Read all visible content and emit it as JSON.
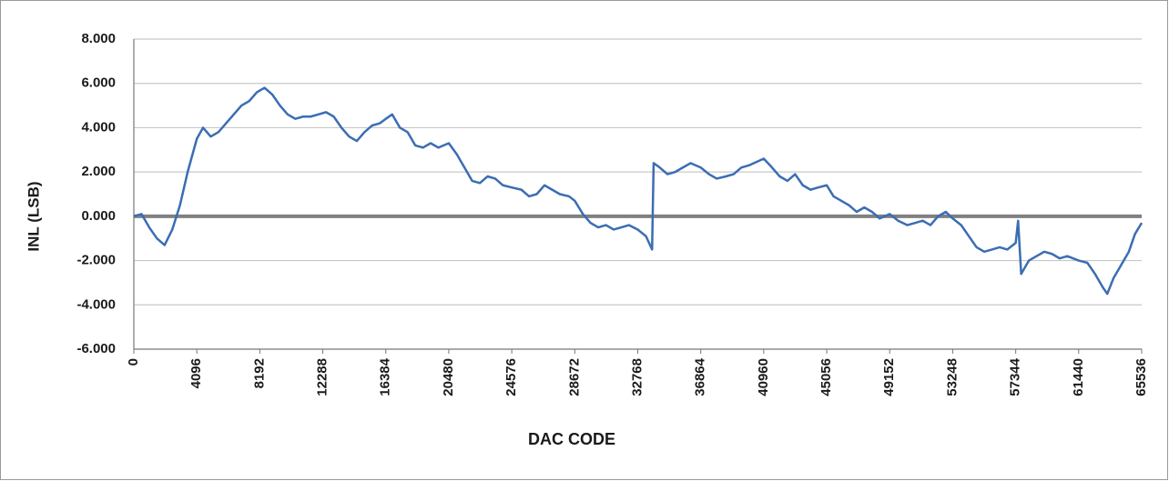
{
  "chart_data": {
    "type": "line",
    "x_label": "DAC CODE",
    "y_label": "INL (LSB)",
    "color": "#3b6db3",
    "grid": true,
    "xlim": [
      0,
      65536
    ],
    "ylim": [
      -6,
      8
    ],
    "xticks": [
      0,
      4096,
      8192,
      12288,
      16384,
      20480,
      24576,
      28672,
      32768,
      36864,
      40960,
      45056,
      49152,
      53248,
      57344,
      61440,
      65536
    ],
    "yticks": [
      {
        "value": -6,
        "label": "-6.000"
      },
      {
        "value": -4,
        "label": "-4.000"
      },
      {
        "value": -2,
        "label": "-2.000"
      },
      {
        "value": 0,
        "label": "0.000"
      },
      {
        "value": 2,
        "label": "2.000"
      },
      {
        "value": 4,
        "label": "4.000"
      },
      {
        "value": 6,
        "label": "6.000"
      },
      {
        "value": 8,
        "label": "8.000"
      }
    ],
    "x": [
      0,
      500,
      1000,
      1500,
      2000,
      2500,
      3000,
      3500,
      4096,
      4500,
      5000,
      5500,
      6000,
      6500,
      7000,
      7500,
      8000,
      8500,
      9000,
      9500,
      10000,
      10500,
      11000,
      11500,
      12000,
      12500,
      13000,
      13500,
      14000,
      14500,
      15000,
      15500,
      16000,
      16384,
      16800,
      17300,
      17800,
      18300,
      18800,
      19300,
      19800,
      20480,
      21000,
      21500,
      22000,
      22500,
      23000,
      23500,
      24000,
      24576,
      25200,
      25700,
      26200,
      26700,
      27200,
      27700,
      28300,
      28672,
      29200,
      29700,
      30200,
      30700,
      31200,
      31700,
      32200,
      32768,
      33300,
      33700,
      33800,
      34200,
      34700,
      35200,
      35700,
      36200,
      36864,
      37400,
      37900,
      38500,
      39000,
      39500,
      40000,
      40960,
      41500,
      42000,
      42500,
      43000,
      43500,
      44000,
      44500,
      45056,
      45500,
      46000,
      46500,
      47000,
      47500,
      48000,
      48500,
      49152,
      49700,
      50300,
      50800,
      51300,
      51800,
      52300,
      52800,
      53248,
      53800,
      54300,
      54800,
      55300,
      55800,
      56300,
      56800,
      57344,
      57500,
      57700,
      58200,
      58700,
      59200,
      59700,
      60200,
      60700,
      61440,
      62000,
      62500,
      63000,
      63300,
      63700,
      64200,
      64700,
      65100,
      65536
    ],
    "values": [
      0,
      0.1,
      -0.5,
      -1.0,
      -1.3,
      -0.6,
      0.5,
      2.0,
      3.5,
      4.0,
      3.6,
      3.8,
      4.2,
      4.6,
      5.0,
      5.2,
      5.6,
      5.8,
      5.5,
      5.0,
      4.6,
      4.4,
      4.5,
      4.5,
      4.6,
      4.7,
      4.5,
      4.0,
      3.6,
      3.4,
      3.8,
      4.1,
      4.2,
      4.4,
      4.6,
      4.0,
      3.8,
      3.2,
      3.1,
      3.3,
      3.1,
      3.3,
      2.8,
      2.2,
      1.6,
      1.5,
      1.8,
      1.7,
      1.4,
      1.3,
      1.2,
      0.9,
      1.0,
      1.4,
      1.2,
      1.0,
      0.9,
      0.7,
      0.1,
      -0.3,
      -0.5,
      -0.4,
      -0.6,
      -0.5,
      -0.4,
      -0.6,
      -0.9,
      -1.5,
      2.4,
      2.2,
      1.9,
      2.0,
      2.2,
      2.4,
      2.2,
      1.9,
      1.7,
      1.8,
      1.9,
      2.2,
      2.3,
      2.6,
      2.2,
      1.8,
      1.6,
      1.9,
      1.4,
      1.2,
      1.3,
      1.4,
      0.9,
      0.7,
      0.5,
      0.2,
      0.4,
      0.2,
      -0.1,
      0.1,
      -0.2,
      -0.4,
      -0.3,
      -0.2,
      -0.4,
      0.0,
      0.2,
      -0.1,
      -0.4,
      -0.9,
      -1.4,
      -1.6,
      -1.5,
      -1.4,
      -1.5,
      -1.2,
      -0.2,
      -2.6,
      -2.0,
      -1.8,
      -1.6,
      -1.7,
      -1.9,
      -1.8,
      -2.0,
      -2.1,
      -2.6,
      -3.2,
      -3.5,
      -2.8,
      -2.2,
      -1.6,
      -0.8,
      -0.3
    ]
  }
}
